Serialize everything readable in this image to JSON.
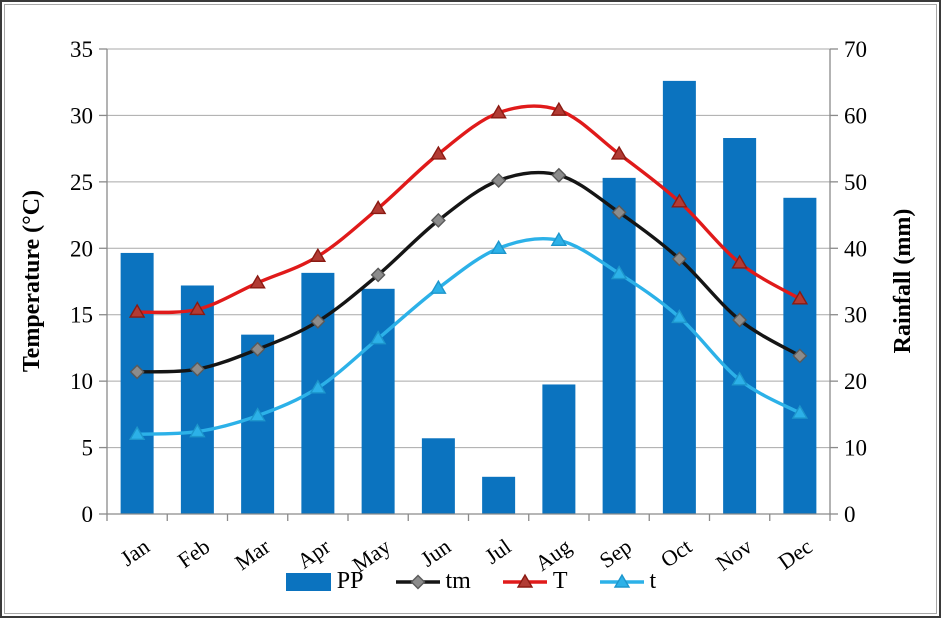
{
  "figure": {
    "background": "#ffffff",
    "outer_border": "#3a3a3a",
    "inner_border": "#a8a8a8"
  },
  "chart_data": {
    "type": "bar",
    "subtype": "combo-bar-and-smoothed-lines",
    "title": "",
    "categories": [
      "Jan",
      "Feb",
      "Mar",
      "Apr",
      "May",
      "Jun",
      "Jul",
      "Aug",
      "Sep",
      "Oct",
      "Nov",
      "Dec"
    ],
    "bar_series": {
      "name": "PP",
      "axis": "right",
      "color": "#0b73bf",
      "values": [
        39.3,
        34.4,
        27.0,
        36.3,
        33.9,
        11.4,
        5.6,
        19.5,
        50.6,
        65.2,
        56.6,
        47.6
      ]
    },
    "series": [
      {
        "name": "tm",
        "axis": "left",
        "color": "#151515",
        "marker": "diamond",
        "marker_fill": "#8c8c8c",
        "marker_stroke": "#5a5a5a",
        "values": [
          10.7,
          10.9,
          12.4,
          14.5,
          18.0,
          22.1,
          25.1,
          25.5,
          22.7,
          19.2,
          14.6,
          11.9
        ]
      },
      {
        "name": "T",
        "axis": "left",
        "color": "#e01a1a",
        "marker": "triangle",
        "marker_fill": "#b23b34",
        "marker_stroke": "#8b1a12",
        "values": [
          15.2,
          15.4,
          17.4,
          19.4,
          23.0,
          27.1,
          30.2,
          30.4,
          27.1,
          23.5,
          18.9,
          16.2
        ]
      },
      {
        "name": "t",
        "axis": "left",
        "color": "#2cb1e8",
        "marker": "triangle",
        "marker_fill": "#2cb1e8",
        "marker_stroke": "#1d96cc",
        "values": [
          6.0,
          6.2,
          7.4,
          9.5,
          13.2,
          17.0,
          20.0,
          20.6,
          18.1,
          14.8,
          10.1,
          7.6
        ]
      }
    ],
    "left_axis": {
      "title": "Temperature (°C)",
      "min": 0,
      "max": 35,
      "step": 5,
      "ticks": [
        0,
        5,
        10,
        15,
        20,
        25,
        30,
        35
      ]
    },
    "right_axis": {
      "title": "Rainfall (mm)",
      "min": 0,
      "max": 70,
      "step": 10,
      "ticks": [
        0,
        10,
        20,
        30,
        40,
        50,
        60,
        70
      ]
    },
    "x_axis": {
      "label": ""
    },
    "grid": "horizontal",
    "grid_color": "#a9a9a9",
    "axis_color": "#8a8a8a",
    "legend_position": "bottom",
    "legend": [
      {
        "label": "PP",
        "swatch": "bar"
      },
      {
        "label": "tm",
        "swatch": "line"
      },
      {
        "label": "T",
        "swatch": "line"
      },
      {
        "label": "t",
        "swatch": "line"
      }
    ]
  }
}
